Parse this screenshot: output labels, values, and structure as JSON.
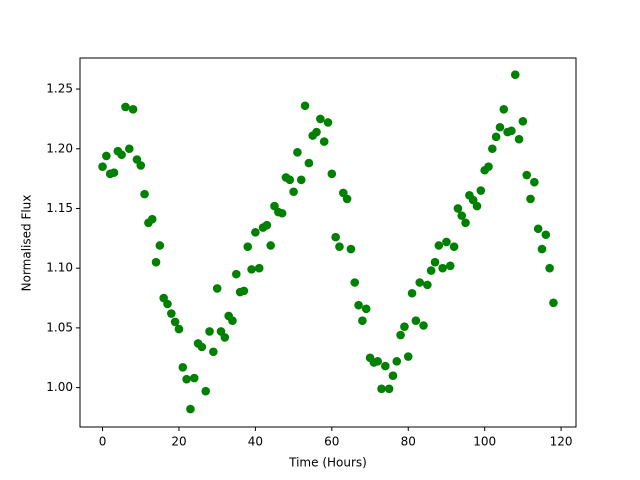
{
  "chart_data": {
    "type": "scatter",
    "x_label": "Time (Hours)",
    "y_label": "Normalised Flux",
    "series": [
      {
        "color": "#008000",
        "x": [
          0,
          1,
          2,
          3,
          4,
          5,
          6,
          7,
          8,
          9,
          10,
          11,
          12,
          13,
          14,
          15,
          16,
          17,
          18,
          19,
          20,
          21,
          22,
          23,
          24,
          25,
          26,
          27,
          28,
          29,
          30,
          31,
          32,
          33,
          34,
          35,
          36,
          37,
          38,
          39,
          40,
          41,
          42,
          43,
          44,
          45,
          46,
          47,
          48,
          49,
          50,
          51,
          52,
          53,
          54,
          55,
          56,
          57,
          58,
          59,
          60,
          61,
          62,
          63,
          64,
          65,
          66,
          67,
          68,
          69,
          70,
          71,
          72,
          73,
          74,
          75,
          76,
          77,
          78,
          79,
          80,
          81,
          82,
          83,
          84,
          85,
          86,
          87,
          88,
          89,
          90,
          91,
          92,
          93,
          94,
          95,
          96,
          97,
          98,
          99,
          100,
          101,
          102,
          103,
          104,
          105,
          106,
          107,
          108,
          109,
          110,
          111,
          112,
          113,
          114,
          115,
          116,
          117,
          118
        ],
        "values": [
          1.185,
          1.194,
          1.179,
          1.18,
          1.198,
          1.195,
          1.235,
          1.2,
          1.233,
          1.191,
          1.186,
          1.162,
          1.138,
          1.141,
          1.105,
          1.119,
          1.075,
          1.07,
          1.062,
          1.055,
          1.049,
          1.017,
          1.007,
          0.982,
          1.008,
          1.037,
          1.034,
          0.997,
          1.047,
          1.03,
          1.083,
          1.047,
          1.042,
          1.06,
          1.056,
          1.095,
          1.08,
          1.081,
          1.118,
          1.099,
          1.13,
          1.1,
          1.134,
          1.136,
          1.119,
          1.152,
          1.147,
          1.146,
          1.176,
          1.174,
          1.164,
          1.197,
          1.174,
          1.236,
          1.188,
          1.211,
          1.214,
          1.225,
          1.206,
          1.222,
          1.179,
          1.126,
          1.118,
          1.163,
          1.158,
          1.116,
          1.088,
          1.069,
          1.056,
          1.066,
          1.025,
          1.021,
          1.022,
          0.999,
          1.018,
          0.999,
          1.01,
          1.022,
          1.044,
          1.051,
          1.026,
          1.079,
          1.056,
          1.088,
          1.052,
          1.086,
          1.098,
          1.105,
          1.119,
          1.1,
          1.122,
          1.102,
          1.118,
          1.15,
          1.144,
          1.138,
          1.161,
          1.157,
          1.152,
          1.165,
          1.182,
          1.185,
          1.2,
          1.21,
          1.218,
          1.233,
          1.214,
          1.215,
          1.262,
          1.208,
          1.223,
          1.178,
          1.158,
          1.172,
          1.133,
          1.116,
          1.128,
          1.1,
          1.071
        ]
      }
    ],
    "xlim": [
      -5.9,
      123.9
    ],
    "xticks": [
      0,
      20,
      40,
      60,
      80,
      100,
      120
    ],
    "ylim": [
      0.967,
      1.276
    ],
    "yticks": [
      {
        "value": 1.0,
        "label": "1.00"
      },
      {
        "value": 1.05,
        "label": "1.05"
      },
      {
        "value": 1.1,
        "label": "1.10"
      },
      {
        "value": 1.15,
        "label": "1.15"
      },
      {
        "value": 1.2,
        "label": "1.20"
      },
      {
        "value": 1.25,
        "label": "1.25"
      }
    ],
    "grid": false
  }
}
